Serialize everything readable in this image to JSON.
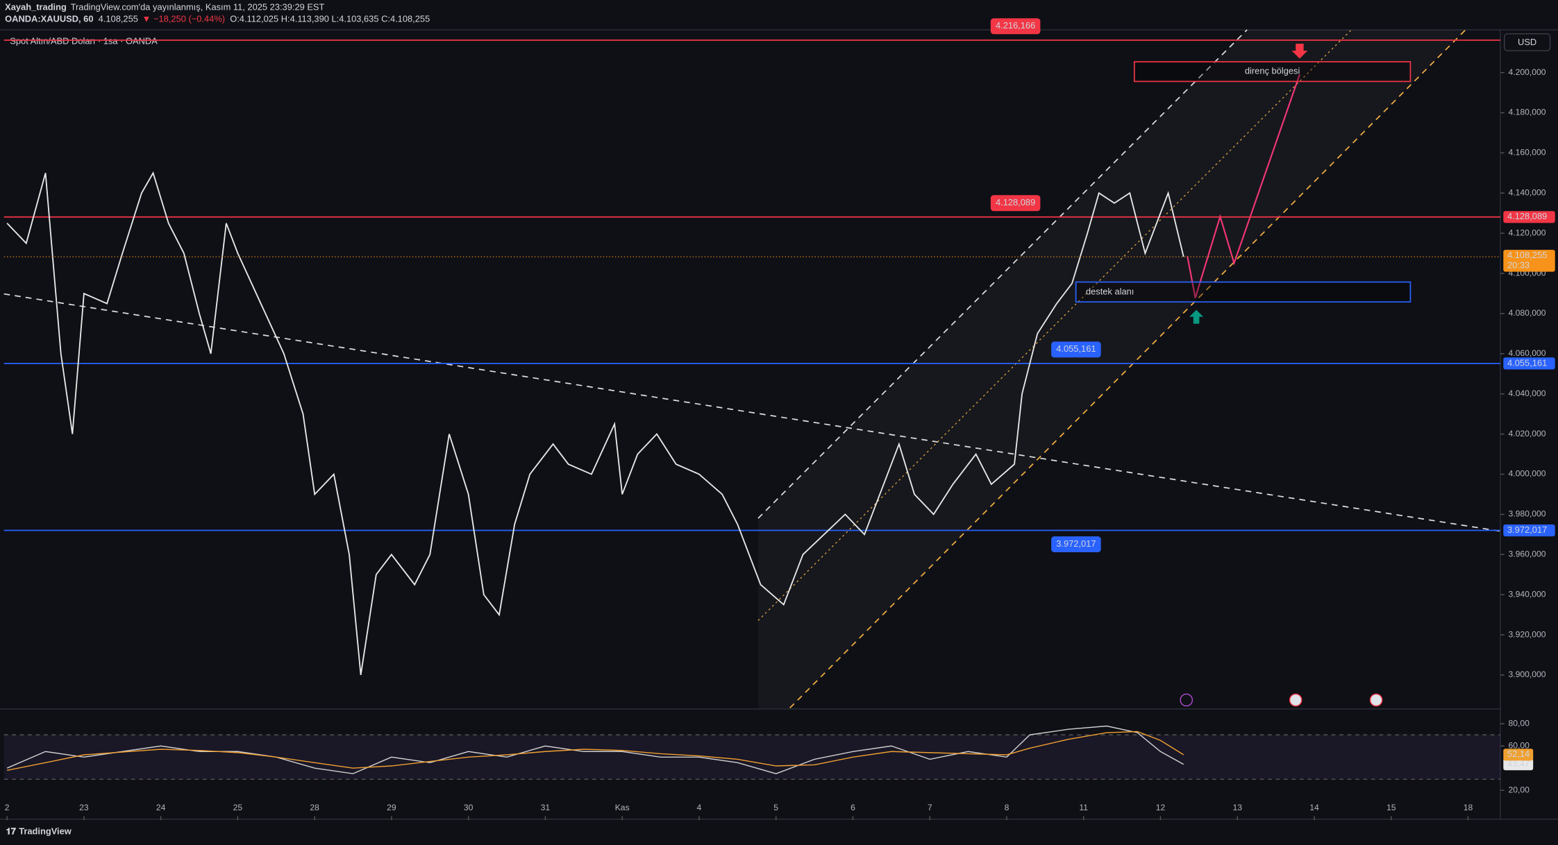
{
  "header": {
    "author": "Xayah_trading",
    "published": "TradingView.com'da yayınlanmış, Kasım 11, 2025 23:39:29 EST",
    "symbol": "OANDA:XAUUSD, 60",
    "last": "4.108,255",
    "change": "▼ −18,250 (−0.44%)",
    "ohlc": "O:4.112,025 H:4.113,390 L:4.103,635 C:4.108,255"
  },
  "chart_data": [
    {
      "type": "line",
      "title": "Spot Altın/ABD Doları · 1sa · OANDA",
      "currency": "USD",
      "color": "#e8e8e8",
      "x": [
        0,
        0.25,
        0.5,
        0.7,
        0.85,
        1.0,
        1.3,
        1.5,
        1.75,
        1.9,
        2.1,
        2.3,
        2.5,
        2.65,
        2.85,
        3.0,
        3.3,
        3.6,
        3.85,
        4.0,
        4.25,
        4.45,
        4.6,
        4.8,
        5.0,
        5.3,
        5.5,
        5.75,
        6.0,
        6.2,
        6.4,
        6.6,
        6.8,
        7.1,
        7.3,
        7.6,
        7.9,
        8.0,
        8.2,
        8.45,
        8.7,
        9.0,
        9.3,
        9.5,
        9.8,
        10.1,
        10.35,
        10.9,
        11.15,
        11.6,
        11.8,
        12.05,
        12.3,
        12.6,
        12.8,
        13.1,
        13.2,
        13.4,
        13.65,
        13.85,
        14.05,
        14.2,
        14.4,
        14.6,
        14.8,
        15.0,
        15.1,
        15.3
      ],
      "values": [
        4125,
        4115,
        4150,
        4060,
        4020,
        4090,
        4085,
        4110,
        4140,
        4150,
        4125,
        4110,
        4080,
        4060,
        4125,
        4110,
        4085,
        4060,
        4030,
        3990,
        4000,
        3960,
        3900,
        3950,
        3960,
        3945,
        3960,
        4020,
        3990,
        3940,
        3930,
        3975,
        4000,
        4015,
        4005,
        4000,
        4025,
        3990,
        4010,
        4020,
        4005,
        4000,
        3990,
        3975,
        3945,
        3935,
        3960,
        3980,
        3970,
        4015,
        3990,
        3980,
        3995,
        4010,
        3995,
        4005,
        4040,
        4070,
        4085,
        4095,
        4120,
        4140,
        4135,
        4140,
        4110,
        4130,
        4140,
        4108.255
      ],
      "xlim": [
        -0.04,
        19.42
      ],
      "ylim": [
        3883.6,
        4221.3
      ],
      "xticks": [
        {
          "value": 0,
          "label": "2"
        },
        {
          "value": 1,
          "label": "23"
        },
        {
          "value": 2,
          "label": "24"
        },
        {
          "value": 3,
          "label": "25"
        },
        {
          "value": 4,
          "label": "28"
        },
        {
          "value": 5,
          "label": "29"
        },
        {
          "value": 6,
          "label": "30"
        },
        {
          "value": 7,
          "label": "31"
        },
        {
          "value": 8,
          "label": "Kas"
        },
        {
          "value": 9,
          "label": "4"
        },
        {
          "value": 10,
          "label": "5"
        },
        {
          "value": 11,
          "label": "6"
        },
        {
          "value": 12,
          "label": "7"
        },
        {
          "value": 13,
          "label": "8"
        },
        {
          "value": 14,
          "label": "11"
        },
        {
          "value": 15,
          "label": "12"
        },
        {
          "value": 16,
          "label": "13"
        },
        {
          "value": 17,
          "label": "14"
        },
        {
          "value": 18,
          "label": "15"
        },
        {
          "value": 19,
          "label": "18"
        }
      ],
      "yticks": [
        {
          "value": 4200,
          "label": "4.200,000"
        },
        {
          "value": 4180,
          "label": "4.180,000"
        },
        {
          "value": 4160,
          "label": "4.160,000"
        },
        {
          "value": 4140,
          "label": "4.140,000"
        },
        {
          "value": 4120,
          "label": "4.120,000"
        },
        {
          "value": 4100,
          "label": "4.100,000"
        },
        {
          "value": 4080,
          "label": "4.080,000"
        },
        {
          "value": 4060,
          "label": "4.060,000"
        },
        {
          "value": 4040,
          "label": "4.040,000"
        },
        {
          "value": 4020,
          "label": "4.020,000"
        },
        {
          "value": 4000,
          "label": "4.000,000"
        },
        {
          "value": 3980,
          "label": "3.980,000"
        },
        {
          "value": 3960,
          "label": "3.960,000"
        },
        {
          "value": 3940,
          "label": "3.940,000"
        },
        {
          "value": 3920,
          "label": "3.920,000"
        },
        {
          "value": 3900,
          "label": "3.900,000"
        }
      ],
      "levels": [
        {
          "value": 4216.166,
          "label": "4.216,166",
          "color": "#f23645"
        },
        {
          "value": 4128.089,
          "label": "4.128,089",
          "color": "#f23645"
        },
        {
          "value": 4055.161,
          "label": "4.055,161",
          "color": "#2962ff"
        },
        {
          "value": 3972.017,
          "label": "3.972,017",
          "color": "#2962ff"
        }
      ],
      "last_price": {
        "value": 4108.255,
        "label": "4.108,255",
        "countdown": "20:33",
        "color": "#f7931a"
      },
      "zones": [
        {
          "text": "direnç bölgesi",
          "x": [
            14.66,
            18.25
          ],
          "y": [
            4195.6,
            4205.4
          ],
          "color": "#f23645"
        },
        {
          "text": "destek alanı",
          "x": [
            13.9,
            18.25
          ],
          "y": [
            4085.8,
            4095.7
          ],
          "color": "#2962ff"
        }
      ]
    },
    {
      "type": "line",
      "ylim": [
        -3.3,
        91.6
      ],
      "yticks": [
        {
          "value": 80,
          "label": "80,00"
        },
        {
          "value": 60,
          "label": "60,00"
        },
        {
          "value": 20,
          "label": "20,00"
        }
      ],
      "bands": [
        30,
        70
      ],
      "x": [
        0,
        0.5,
        1,
        2,
        2.5,
        3,
        3.5,
        4,
        4.5,
        5,
        5.5,
        6,
        6.5,
        7,
        7.5,
        8,
        8.5,
        9,
        9.5,
        10,
        10.5,
        11,
        11.5,
        12,
        12.5,
        13,
        13.3,
        13.8,
        14.3,
        14.7,
        15.0,
        15.3
      ],
      "series": [
        {
          "color": "#d0d0d0",
          "values": [
            40,
            55,
            50,
            60,
            55,
            55,
            50,
            40,
            35,
            50,
            45,
            55,
            50,
            60,
            55,
            55,
            50,
            50,
            45,
            35,
            48,
            55,
            60,
            48,
            55,
            50,
            70,
            75,
            78,
            72,
            55,
            43.47
          ],
          "last_label": "43,47"
        },
        {
          "color": "#f0a030",
          "values": [
            38,
            45,
            52,
            57,
            56,
            54,
            50,
            45,
            40,
            42,
            46,
            50,
            52,
            55,
            57,
            56,
            53,
            51,
            48,
            42,
            43,
            50,
            55,
            54,
            53,
            52,
            58,
            66,
            72,
            73,
            65,
            52.14
          ],
          "last_label": "52,14"
        }
      ]
    }
  ],
  "footer": {
    "logo": "TradingView"
  }
}
